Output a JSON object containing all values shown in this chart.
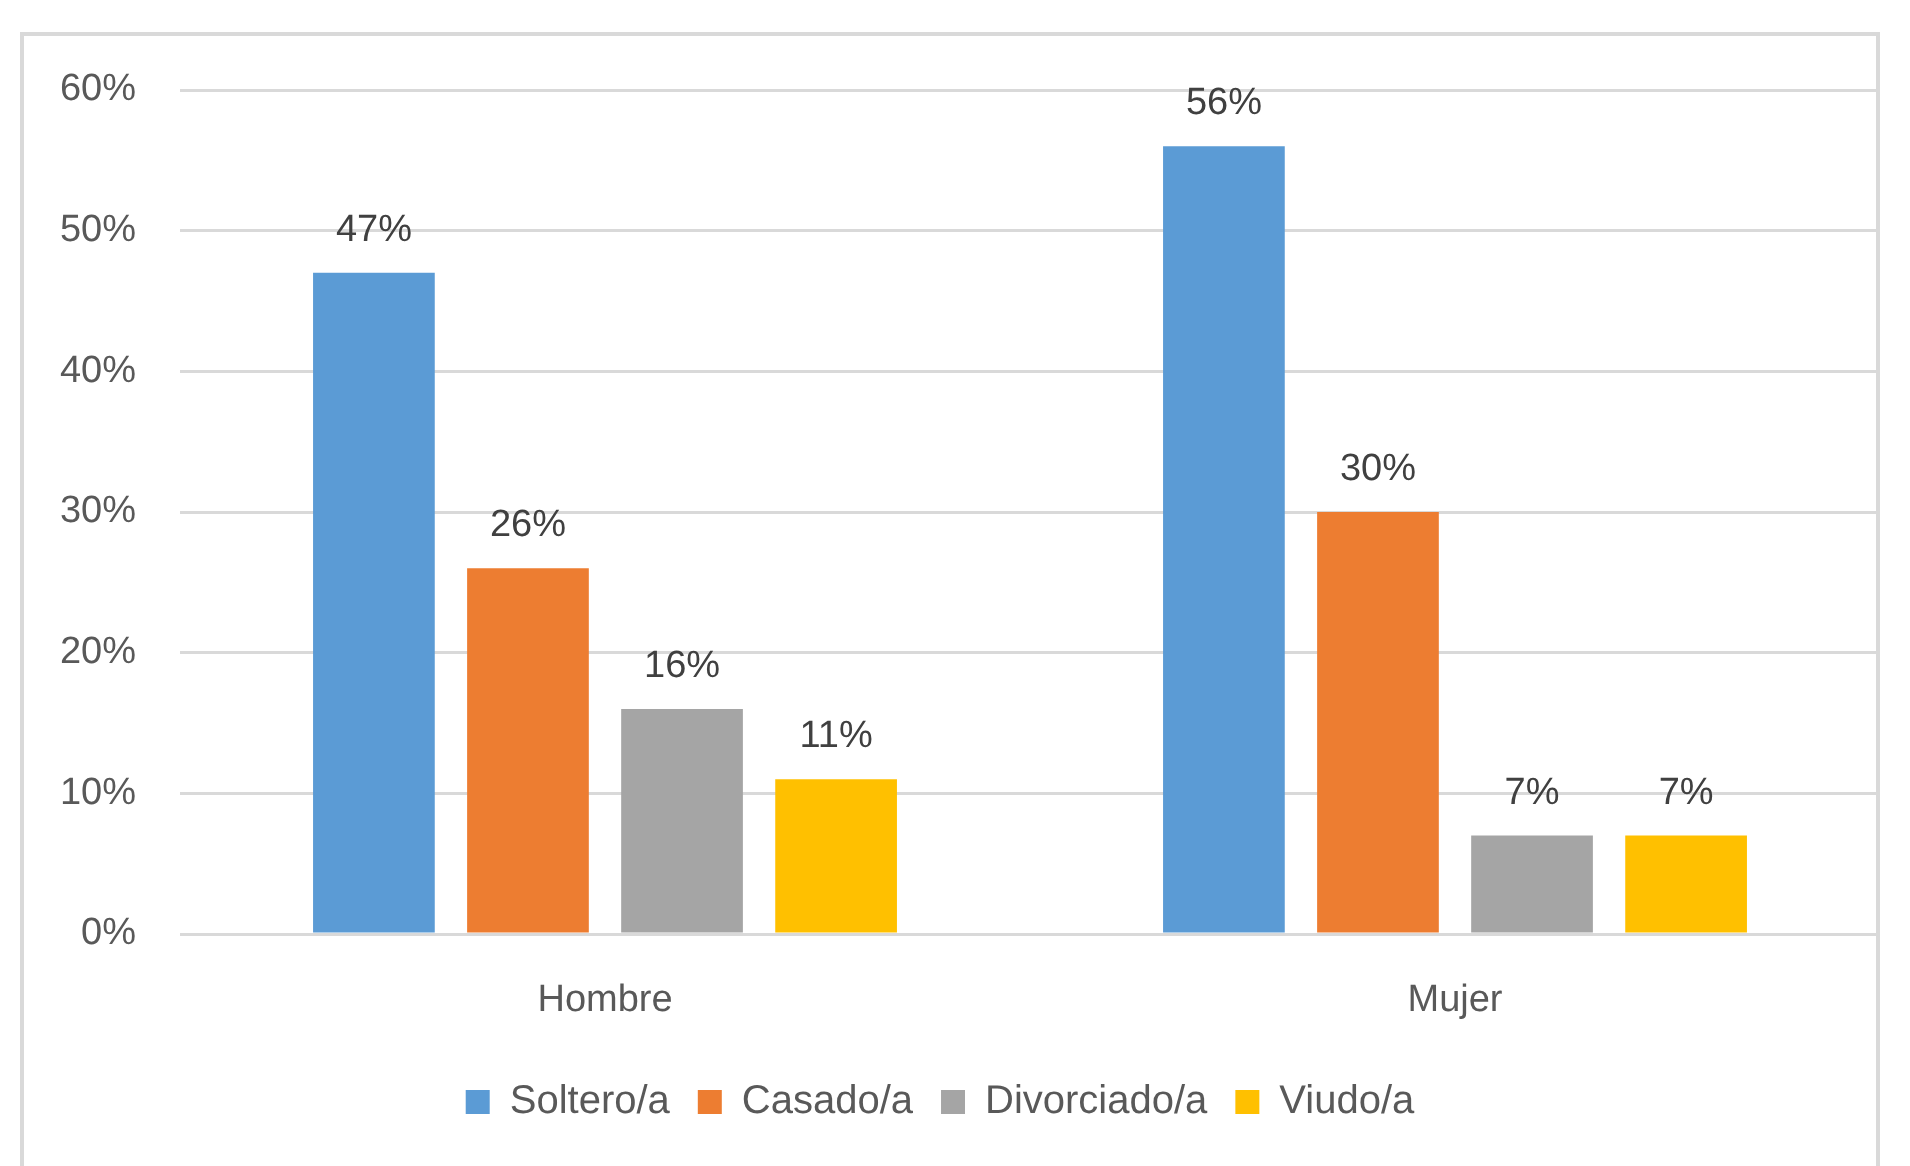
{
  "chart_data": {
    "type": "bar",
    "categories": [
      "Hombre",
      "Mujer"
    ],
    "series": [
      {
        "name": "Soltero/a",
        "color": "#5b9bd5",
        "values": [
          47,
          56
        ],
        "value_labels": [
          "47%",
          "56%"
        ]
      },
      {
        "name": "Casado/a",
        "color": "#ed7d31",
        "values": [
          26,
          30
        ],
        "value_labels": [
          "26%",
          "30%"
        ]
      },
      {
        "name": "Divorciado/a",
        "color": "#a5a5a5",
        "values": [
          16,
          7
        ],
        "value_labels": [
          "16%",
          "7%"
        ]
      },
      {
        "name": "Viudo/a",
        "color": "#ffc000",
        "values": [
          11,
          7
        ],
        "value_labels": [
          "11%",
          "7%"
        ]
      }
    ],
    "ylim": [
      0,
      60
    ],
    "yticks": [
      {
        "value": 0,
        "label": "0%"
      },
      {
        "value": 10,
        "label": "10%"
      },
      {
        "value": 20,
        "label": "20%"
      },
      {
        "value": 30,
        "label": "30%"
      },
      {
        "value": 40,
        "label": "40%"
      },
      {
        "value": 50,
        "label": "50%"
      },
      {
        "value": 60,
        "label": "60%"
      }
    ],
    "grid": "y",
    "legend": "bottom"
  }
}
